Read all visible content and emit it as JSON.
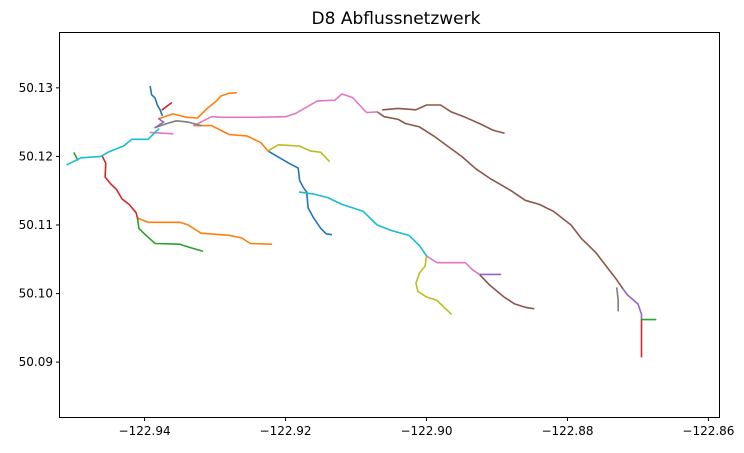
{
  "chart_data": {
    "type": "line",
    "title": "D8 Abflussnetzwerk",
    "xlabel": "",
    "ylabel": "",
    "xlim": [
      -122.952,
      -122.8585
    ],
    "ylim": [
      50.082,
      50.138
    ],
    "grid": false,
    "x_ticks": [
      {
        "value": -122.94,
        "label": "−122.94"
      },
      {
        "value": -122.92,
        "label": "−122.92"
      },
      {
        "value": -122.9,
        "label": "−122.90"
      },
      {
        "value": -122.88,
        "label": "−122.88"
      },
      {
        "value": -122.86,
        "label": "−122.86"
      }
    ],
    "y_ticks": [
      {
        "value": 50.09,
        "label": "50.09"
      },
      {
        "value": 50.1,
        "label": "50.10"
      },
      {
        "value": 50.11,
        "label": "50.11"
      },
      {
        "value": 50.12,
        "label": "50.12"
      },
      {
        "value": 50.13,
        "label": "50.13"
      }
    ],
    "series": [
      {
        "color": "#1f77b4",
        "points": [
          [
            -122.9392,
            50.1302
          ],
          [
            -122.939,
            50.129
          ],
          [
            -122.9385,
            50.1285
          ],
          [
            -122.9382,
            50.1275
          ],
          [
            -122.9378,
            50.1268
          ],
          [
            -122.9375,
            50.126
          ]
        ]
      },
      {
        "color": "#1f77b4",
        "points": [
          [
            -122.9225,
            50.1208
          ],
          [
            -122.9205,
            50.1196
          ],
          [
            -122.9195,
            50.119
          ],
          [
            -122.9182,
            50.1183
          ],
          [
            -122.918,
            50.1165
          ],
          [
            -122.9175,
            50.1155
          ],
          [
            -122.917,
            50.1148
          ],
          [
            -122.9168,
            50.1125
          ],
          [
            -122.916,
            50.111
          ],
          [
            -122.915,
            50.1095
          ],
          [
            -122.9142,
            50.1087
          ],
          [
            -122.9135,
            50.1086
          ]
        ]
      },
      {
        "color": "#ff7f0e",
        "points": [
          [
            -122.938,
            50.1255
          ],
          [
            -122.936,
            50.1262
          ],
          [
            -122.934,
            50.1257
          ],
          [
            -122.9325,
            50.1256
          ],
          [
            -122.931,
            50.1271
          ],
          [
            -122.9298,
            50.1281
          ],
          [
            -122.9292,
            50.1288
          ],
          [
            -122.928,
            50.1292
          ],
          [
            -122.927,
            50.1293
          ]
        ]
      },
      {
        "color": "#ff7f0e",
        "points": [
          [
            -122.933,
            50.1245
          ],
          [
            -122.9305,
            50.1245
          ],
          [
            -122.928,
            50.1232
          ],
          [
            -122.9255,
            50.123
          ],
          [
            -122.9235,
            50.122
          ],
          [
            -122.9225,
            50.1208
          ]
        ]
      },
      {
        "color": "#ff7f0e",
        "points": [
          [
            -122.941,
            50.111
          ],
          [
            -122.9395,
            50.1104
          ],
          [
            -122.935,
            50.1104
          ],
          [
            -122.9338,
            50.11
          ],
          [
            -122.932,
            50.1088
          ],
          [
            -122.928,
            50.1085
          ],
          [
            -122.9262,
            50.1081
          ],
          [
            -122.925,
            50.1073
          ],
          [
            -122.922,
            50.1072
          ]
        ]
      },
      {
        "color": "#2ca02c",
        "points": [
          [
            -122.95,
            50.1205
          ],
          [
            -122.9495,
            50.1195
          ]
        ]
      },
      {
        "color": "#2ca02c",
        "points": [
          [
            -122.941,
            50.111
          ],
          [
            -122.9408,
            50.1095
          ],
          [
            -122.9398,
            50.1085
          ],
          [
            -122.9385,
            50.1073
          ],
          [
            -122.935,
            50.1072
          ],
          [
            -122.9335,
            50.1067
          ],
          [
            -122.9318,
            50.1062
          ]
        ]
      },
      {
        "color": "#d62728",
        "points": [
          [
            -122.9375,
            50.1268
          ],
          [
            -122.9362,
            50.1278
          ]
        ]
      },
      {
        "color": "#d62728",
        "points": [
          [
            -122.946,
            50.12
          ],
          [
            -122.9455,
            50.119
          ],
          [
            -122.9456,
            50.117
          ],
          [
            -122.9448,
            50.116
          ],
          [
            -122.944,
            50.1152
          ],
          [
            -122.9432,
            50.1138
          ],
          [
            -122.9422,
            50.113
          ],
          [
            -122.9412,
            50.1118
          ],
          [
            -122.941,
            50.111
          ]
        ]
      },
      {
        "color": "#d62728",
        "points": [
          [
            -122.8695,
            50.0962
          ],
          [
            -122.8695,
            50.0908
          ]
        ]
      },
      {
        "color": "#9467bd",
        "points": [
          [
            -122.938,
            50.1255
          ],
          [
            -122.9373,
            50.125
          ],
          [
            -122.9385,
            50.1242
          ]
        ]
      },
      {
        "color": "#9467bd",
        "points": [
          [
            -122.8925,
            50.1028
          ],
          [
            -122.8895,
            50.1028
          ]
        ]
      },
      {
        "color": "#9467bd",
        "points": [
          [
            -122.8722,
            50.1008
          ],
          [
            -122.8715,
            50.0998
          ],
          [
            -122.87,
            50.0985
          ],
          [
            -122.8695,
            50.097
          ],
          [
            -122.8695,
            50.0962
          ]
        ]
      },
      {
        "color": "#8c564b",
        "points": [
          [
            -122.907,
            50.1265
          ],
          [
            -122.906,
            50.1258
          ],
          [
            -122.904,
            50.1254
          ],
          [
            -122.903,
            50.1248
          ],
          [
            -122.901,
            50.1243
          ],
          [
            -122.899,
            50.123
          ],
          [
            -122.897,
            50.1215
          ],
          [
            -122.895,
            50.12
          ],
          [
            -122.893,
            50.1182
          ],
          [
            -122.891,
            50.1168
          ],
          [
            -122.888,
            50.115
          ],
          [
            -122.886,
            50.1136
          ],
          [
            -122.884,
            50.113
          ],
          [
            -122.882,
            50.112
          ],
          [
            -122.8795,
            50.11
          ],
          [
            -122.878,
            50.108
          ],
          [
            -122.876,
            50.106
          ],
          [
            -122.8745,
            50.104
          ],
          [
            -122.873,
            50.102
          ],
          [
            -122.8722,
            50.1008
          ]
        ]
      },
      {
        "color": "#8c564b",
        "points": [
          [
            -122.9062,
            50.1268
          ],
          [
            -122.904,
            50.127
          ],
          [
            -122.9015,
            50.1268
          ],
          [
            -122.9,
            50.1275
          ],
          [
            -122.898,
            50.1275
          ],
          [
            -122.8965,
            50.1265
          ],
          [
            -122.8945,
            50.1257
          ],
          [
            -122.8925,
            50.1248
          ],
          [
            -122.8905,
            50.1238
          ],
          [
            -122.889,
            50.1234
          ]
        ]
      },
      {
        "color": "#8c564b",
        "points": [
          [
            -122.8925,
            50.1028
          ],
          [
            -122.891,
            50.1012
          ],
          [
            -122.889,
            50.0995
          ],
          [
            -122.8875,
            50.0985
          ],
          [
            -122.886,
            50.098
          ],
          [
            -122.8848,
            50.0978
          ]
        ]
      },
      {
        "color": "#e377c2",
        "points": [
          [
            -122.9392,
            50.1235
          ],
          [
            -122.936,
            50.1233
          ]
        ]
      },
      {
        "color": "#e377c2",
        "points": [
          [
            -122.933,
            50.1245
          ],
          [
            -122.9305,
            50.1258
          ],
          [
            -122.929,
            50.1257
          ],
          [
            -122.9245,
            50.1257
          ],
          [
            -122.92,
            50.1258
          ],
          [
            -122.9185,
            50.1263
          ],
          [
            -122.917,
            50.1272
          ],
          [
            -122.9155,
            50.1281
          ],
          [
            -122.913,
            50.1282
          ],
          [
            -122.912,
            50.1291
          ],
          [
            -122.9105,
            50.1286
          ],
          [
            -122.9095,
            50.1275
          ],
          [
            -122.9085,
            50.1264
          ],
          [
            -122.907,
            50.1265
          ]
        ]
      },
      {
        "color": "#e377c2",
        "points": [
          [
            -122.9,
            50.1055
          ],
          [
            -122.8985,
            50.1045
          ],
          [
            -122.8945,
            50.1045
          ],
          [
            -122.8935,
            50.1035
          ],
          [
            -122.8925,
            50.1028
          ]
        ]
      },
      {
        "color": "#7f7f7f",
        "points": [
          [
            -122.9385,
            50.1242
          ],
          [
            -122.9368,
            50.1248
          ],
          [
            -122.9355,
            50.1252
          ],
          [
            -122.9338,
            50.125
          ],
          [
            -122.932,
            50.1245
          ]
        ]
      },
      {
        "color": "#7f7f7f",
        "points": [
          [
            -122.873,
            50.1008
          ],
          [
            -122.8728,
            50.099
          ],
          [
            -122.8728,
            50.0975
          ]
        ]
      },
      {
        "color": "#bcbd22",
        "points": [
          [
            -122.9225,
            50.1208
          ],
          [
            -122.921,
            50.1217
          ],
          [
            -122.918,
            50.1215
          ],
          [
            -122.9165,
            50.1208
          ],
          [
            -122.915,
            50.1206
          ],
          [
            -122.9138,
            50.1193
          ]
        ]
      },
      {
        "color": "#bcbd22",
        "points": [
          [
            -122.9,
            50.1055
          ],
          [
            -122.9002,
            50.104
          ],
          [
            -122.901,
            50.103
          ],
          [
            -122.9015,
            50.1015
          ],
          [
            -122.9012,
            50.1003
          ],
          [
            -122.9,
            50.0995
          ],
          [
            -122.8985,
            50.099
          ],
          [
            -122.8975,
            50.098
          ],
          [
            -122.8965,
            50.097
          ]
        ]
      },
      {
        "color": "#17becf",
        "points": [
          [
            -122.951,
            50.1188
          ],
          [
            -122.949,
            50.1198
          ],
          [
            -122.9462,
            50.12
          ],
          [
            -122.945,
            50.1207
          ],
          [
            -122.943,
            50.1215
          ],
          [
            -122.9418,
            50.1225
          ],
          [
            -122.9395,
            50.1225
          ],
          [
            -122.9385,
            50.1235
          ],
          [
            -122.938,
            50.124
          ]
        ]
      },
      {
        "color": "#17becf",
        "points": [
          [
            -122.918,
            50.1148
          ],
          [
            -122.916,
            50.1145
          ],
          [
            -122.914,
            50.114
          ],
          [
            -122.912,
            50.113
          ],
          [
            -122.909,
            50.112
          ],
          [
            -122.907,
            50.11
          ],
          [
            -122.905,
            50.1092
          ],
          [
            -122.9025,
            50.1085
          ],
          [
            -122.901,
            50.107
          ],
          [
            -122.9,
            50.1055
          ]
        ]
      },
      {
        "color": "#2ca02c",
        "points": [
          [
            -122.8695,
            50.0962
          ],
          [
            -122.8675,
            50.0962
          ]
        ]
      }
    ]
  }
}
